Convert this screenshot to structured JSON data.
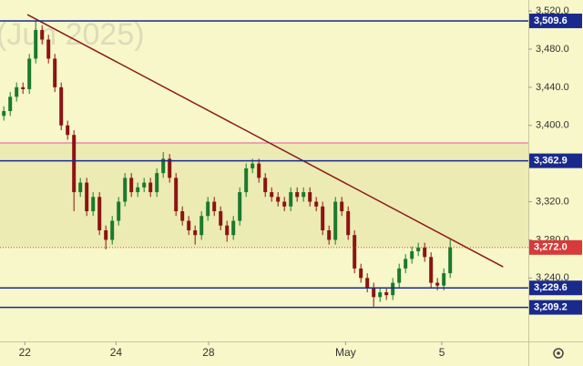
{
  "chart_data": {
    "type": "candlestick",
    "watermark": "(Jun 2025)",
    "open": [
      3410,
      3415,
      3430,
      3440,
      3438,
      3470,
      3500,
      3490,
      3470,
      3440,
      3400,
      3390,
      3330,
      3340,
      3310,
      3325,
      3290,
      3280,
      3300,
      3320,
      3345,
      3330,
      3335,
      3340,
      3330,
      3350,
      3365,
      3345,
      3310,
      3300,
      3290,
      3285,
      3305,
      3320,
      3310,
      3295,
      3285,
      3300,
      3330,
      3355,
      3360,
      3345,
      3330,
      3325,
      3320,
      3315,
      3330,
      3325,
      3330,
      3320,
      3315,
      3290,
      3280,
      3320,
      3310,
      3285,
      3250,
      3240,
      3230,
      3220,
      3225,
      3222,
      3235,
      3250,
      3260,
      3268,
      3272,
      3262,
      3235,
      3232,
      3245
    ],
    "high": [
      3420,
      3435,
      3445,
      3445,
      3475,
      3509,
      3505,
      3495,
      3475,
      3445,
      3405,
      3395,
      3345,
      3345,
      3330,
      3330,
      3295,
      3305,
      3325,
      3350,
      3350,
      3340,
      3345,
      3345,
      3355,
      3372,
      3370,
      3350,
      3315,
      3305,
      3295,
      3310,
      3325,
      3325,
      3315,
      3300,
      3305,
      3335,
      3360,
      3365,
      3365,
      3350,
      3335,
      3330,
      3325,
      3335,
      3335,
      3335,
      3335,
      3325,
      3320,
      3295,
      3325,
      3325,
      3315,
      3290,
      3255,
      3245,
      3235,
      3230,
      3230,
      3240,
      3255,
      3265,
      3273,
      3277,
      3277,
      3267,
      3240,
      3250,
      3280
    ],
    "low": [
      3405,
      3410,
      3425,
      3433,
      3433,
      3465,
      3485,
      3465,
      3435,
      3395,
      3385,
      3310,
      3325,
      3305,
      3305,
      3285,
      3270,
      3275,
      3295,
      3315,
      3325,
      3325,
      3330,
      3325,
      3325,
      3345,
      3340,
      3305,
      3295,
      3285,
      3275,
      3280,
      3300,
      3305,
      3290,
      3278,
      3280,
      3295,
      3325,
      3350,
      3340,
      3325,
      3320,
      3315,
      3310,
      3310,
      3320,
      3320,
      3315,
      3310,
      3285,
      3275,
      3275,
      3305,
      3280,
      3245,
      3235,
      3225,
      3210,
      3215,
      3217,
      3217,
      3230,
      3245,
      3255,
      3263,
      3257,
      3230,
      3227,
      3227,
      3240
    ],
    "close": [
      3415,
      3430,
      3440,
      3438,
      3470,
      3500,
      3490,
      3470,
      3440,
      3400,
      3390,
      3330,
      3340,
      3310,
      3325,
      3290,
      3280,
      3300,
      3320,
      3345,
      3330,
      3335,
      3340,
      3330,
      3350,
      3365,
      3345,
      3310,
      3300,
      3290,
      3285,
      3305,
      3320,
      3310,
      3295,
      3285,
      3300,
      3330,
      3355,
      3360,
      3345,
      3330,
      3325,
      3320,
      3315,
      3330,
      3325,
      3330,
      3320,
      3315,
      3290,
      3280,
      3320,
      3310,
      3285,
      3250,
      3240,
      3230,
      3220,
      3225,
      3222,
      3235,
      3250,
      3260,
      3268,
      3272,
      3262,
      3235,
      3232,
      3245,
      3272
    ],
    "up_color": "#1b7a2e",
    "down_color": "#8b1414",
    "ylim": [
      3173.5,
      3531.5
    ],
    "xlim": [
      -0.6,
      82.26
    ],
    "yticks": [
      {
        "value": 3520,
        "label": "3,520.0"
      },
      {
        "value": 3480,
        "label": "3,480.0"
      },
      {
        "value": 3440,
        "label": "3,440.0"
      },
      {
        "value": 3400,
        "label": "3,400.0"
      },
      {
        "value": 3320,
        "label": "3,320.0"
      },
      {
        "value": 3280,
        "label": "3,280.0"
      },
      {
        "value": 3240,
        "label": "3,240.0"
      }
    ],
    "xticks": [
      {
        "value": 3.3,
        "label": "22"
      },
      {
        "value": 17.6,
        "label": "24"
      },
      {
        "value": 32.1,
        "label": "28"
      },
      {
        "value": 53.6,
        "label": "May"
      },
      {
        "value": 68.7,
        "label": "5"
      }
    ],
    "band": {
      "values": [
        3381.6,
        3272.0
      ],
      "color": "#ecebb4",
      "edge_color": "#e05a9a"
    },
    "levels": [
      {
        "value": 3509.6,
        "label": "3,509.6",
        "color": "#1a2a8c"
      },
      {
        "value": 3362.9,
        "label": "3,362.9",
        "color": "#1a2a8c"
      },
      {
        "value": 3272.0,
        "label": "3,272.0",
        "color": "#d63a3a"
      },
      {
        "value": 3229.6,
        "label": "3,229.6",
        "color": "#1a2a8c"
      },
      {
        "value": 3209.2,
        "label": "3,209.2",
        "color": "#1a2a8c"
      }
    ],
    "trendline": {
      "x": [
        3.7,
        78.3
      ],
      "values": [
        3516.2,
        3251.7
      ],
      "color": "#8b1a1a"
    }
  }
}
